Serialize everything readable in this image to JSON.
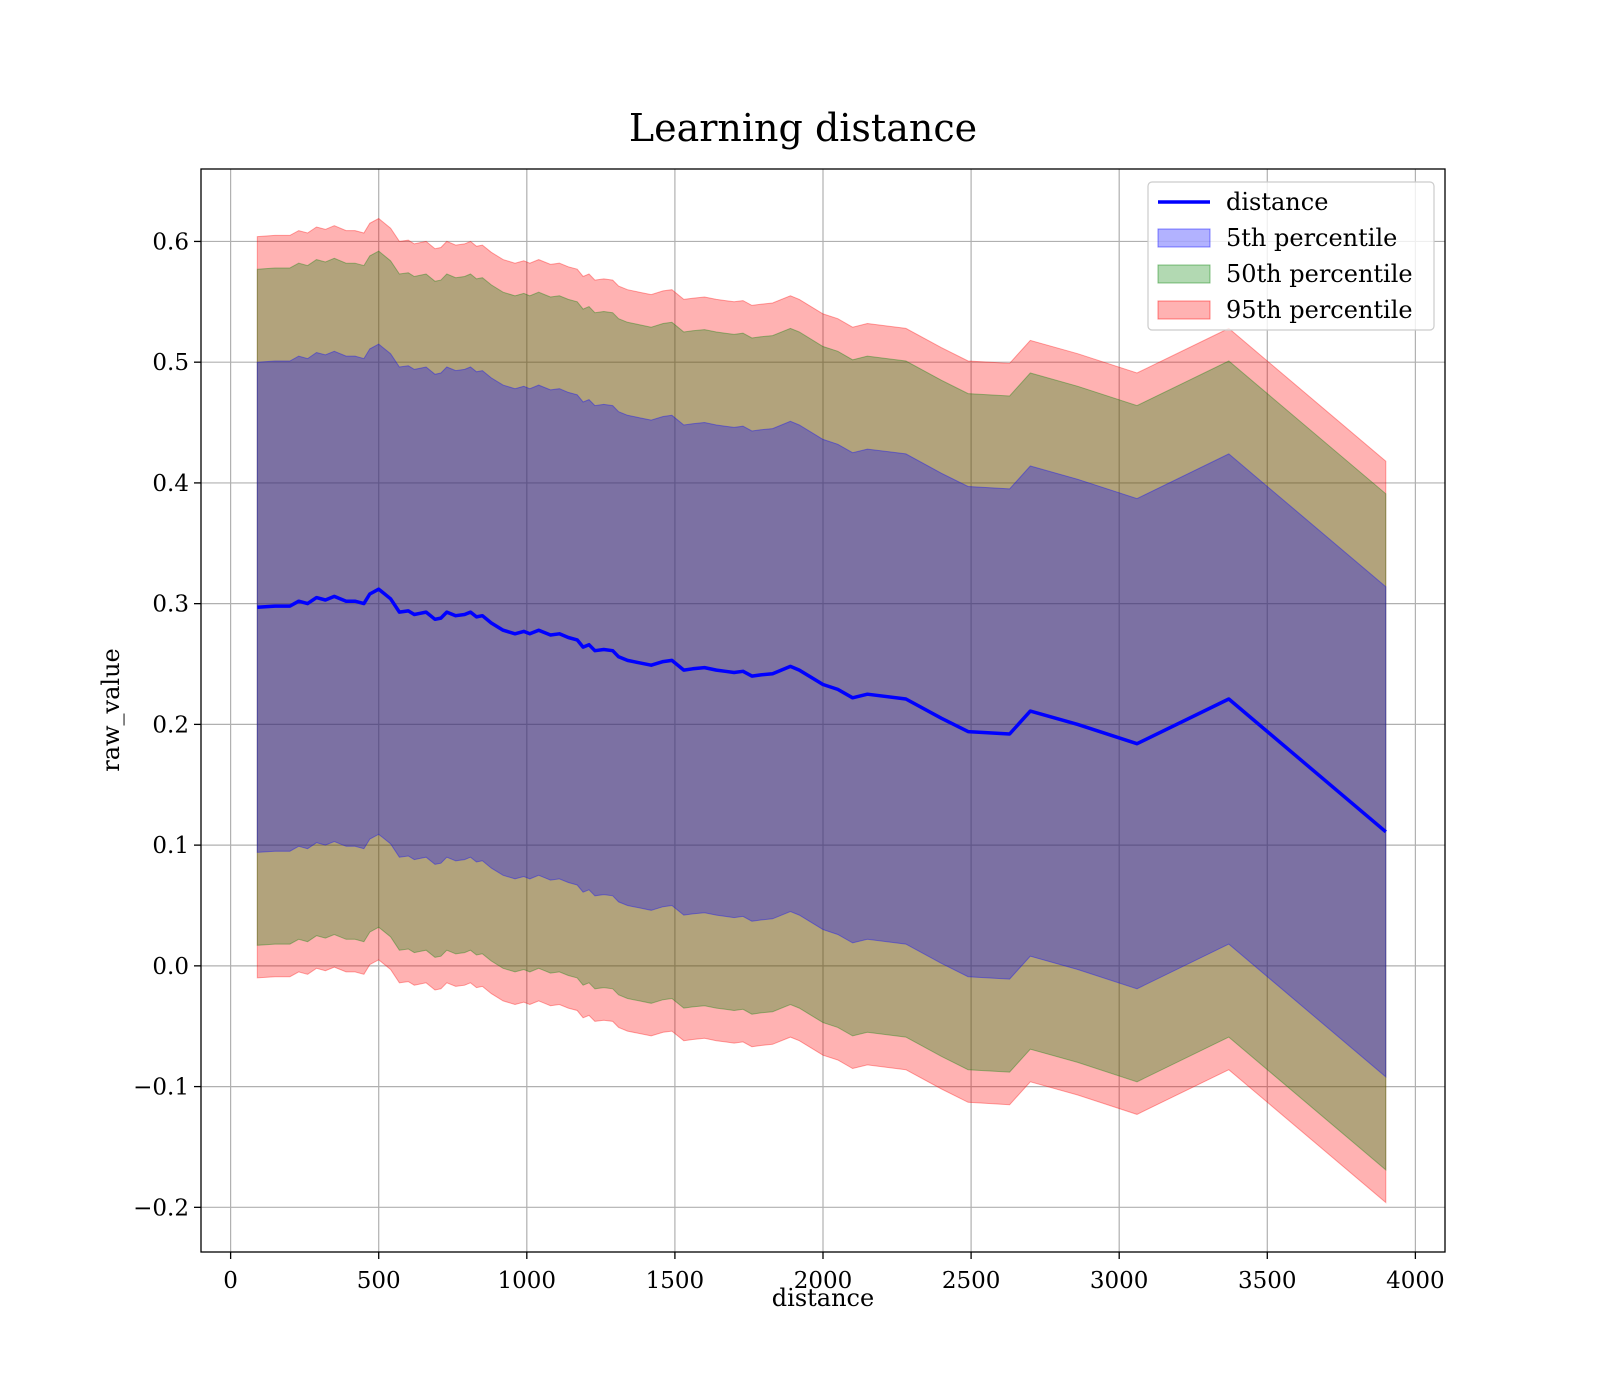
{
  "chart_data": {
    "type": "area",
    "title": "Learning distance",
    "xlabel": "distance",
    "ylabel": "raw_value",
    "xlim": [
      -100,
      4100
    ],
    "ylim": [
      -0.237,
      0.66
    ],
    "x_ticks": [
      0,
      500,
      1000,
      1500,
      2000,
      2500,
      3000,
      3500,
      4000
    ],
    "x_tick_labels": [
      "0",
      "500",
      "1000",
      "1500",
      "2000",
      "2500",
      "3000",
      "3500",
      "4000"
    ],
    "y_ticks": [
      -0.2,
      -0.1,
      0.0,
      0.1,
      0.2,
      0.3,
      0.4,
      0.5,
      0.6
    ],
    "y_tick_labels": [
      "−0.2",
      "−0.1",
      "0.0",
      "0.1",
      "0.2",
      "0.3",
      "0.4",
      "0.5",
      "0.6"
    ],
    "grid": true,
    "legend_position": "upper right",
    "legend": [
      {
        "label": "distance",
        "kind": "line",
        "color": "#0000ff"
      },
      {
        "label": "5th percentile",
        "kind": "patch",
        "color": "#0000ff",
        "alpha": 0.3
      },
      {
        "label": "50th percentile",
        "kind": "patch",
        "color": "#008000",
        "alpha": 0.3
      },
      {
        "label": "95th percentile",
        "kind": "patch",
        "color": "#ff0000",
        "alpha": 0.3
      }
    ],
    "x": [
      90,
      150,
      200,
      230,
      260,
      290,
      320,
      350,
      390,
      420,
      450,
      470,
      500,
      540,
      570,
      600,
      620,
      640,
      660,
      690,
      710,
      730,
      760,
      790,
      810,
      830,
      850,
      880,
      920,
      960,
      990,
      1010,
      1040,
      1060,
      1080,
      1110,
      1140,
      1170,
      1190,
      1210,
      1230,
      1260,
      1290,
      1310,
      1340,
      1380,
      1420,
      1460,
      1490,
      1530,
      1560,
      1600,
      1640,
      1670,
      1700,
      1730,
      1760,
      1790,
      1830,
      1890,
      1920,
      2000,
      2050,
      2100,
      2150,
      2280,
      2400,
      2490,
      2630,
      2700,
      2860,
      3060,
      3370,
      3900
    ],
    "series": [
      {
        "name": "distance",
        "type": "line",
        "color": "#0000ff",
        "values": [
          0.297,
          0.298,
          0.298,
          0.302,
          0.3,
          0.305,
          0.303,
          0.306,
          0.302,
          0.302,
          0.3,
          0.308,
          0.312,
          0.304,
          0.293,
          0.294,
          0.291,
          0.292,
          0.293,
          0.287,
          0.288,
          0.293,
          0.29,
          0.291,
          0.293,
          0.289,
          0.29,
          0.284,
          0.278,
          0.275,
          0.277,
          0.275,
          0.278,
          0.276,
          0.274,
          0.275,
          0.272,
          0.27,
          0.264,
          0.266,
          0.261,
          0.262,
          0.261,
          0.256,
          0.253,
          0.251,
          0.249,
          0.252,
          0.253,
          0.245,
          0.246,
          0.247,
          0.245,
          0.244,
          0.243,
          0.244,
          0.24,
          0.241,
          0.242,
          0.248,
          0.245,
          0.233,
          0.229,
          0.222,
          0.225,
          0.221,
          0.205,
          0.194,
          0.192,
          0.211,
          0.2,
          0.184,
          0.221,
          0.111
        ]
      },
      {
        "name": "5th percentile",
        "type": "band",
        "color": "#0000ff",
        "alpha": 0.3,
        "lower": [
          0.094,
          0.095,
          0.095,
          0.099,
          0.097,
          0.102,
          0.1,
          0.103,
          0.099,
          0.099,
          0.097,
          0.105,
          0.109,
          0.101,
          0.09,
          0.091,
          0.088,
          0.089,
          0.09,
          0.084,
          0.085,
          0.09,
          0.087,
          0.088,
          0.09,
          0.086,
          0.087,
          0.081,
          0.075,
          0.072,
          0.074,
          0.072,
          0.075,
          0.073,
          0.071,
          0.072,
          0.069,
          0.067,
          0.061,
          0.063,
          0.058,
          0.059,
          0.058,
          0.053,
          0.05,
          0.048,
          0.046,
          0.049,
          0.05,
          0.042,
          0.043,
          0.044,
          0.042,
          0.041,
          0.04,
          0.041,
          0.037,
          0.038,
          0.039,
          0.045,
          0.042,
          0.03,
          0.026,
          0.019,
          0.022,
          0.018,
          0.002,
          -0.009,
          -0.011,
          0.008,
          -0.003,
          -0.019,
          0.018,
          -0.092
        ],
        "upper": [
          0.5,
          0.501,
          0.501,
          0.505,
          0.503,
          0.508,
          0.506,
          0.509,
          0.505,
          0.505,
          0.503,
          0.511,
          0.515,
          0.507,
          0.496,
          0.497,
          0.494,
          0.495,
          0.496,
          0.49,
          0.491,
          0.496,
          0.493,
          0.494,
          0.496,
          0.492,
          0.493,
          0.487,
          0.481,
          0.478,
          0.48,
          0.478,
          0.481,
          0.479,
          0.477,
          0.478,
          0.475,
          0.473,
          0.467,
          0.469,
          0.464,
          0.465,
          0.464,
          0.459,
          0.456,
          0.454,
          0.452,
          0.455,
          0.456,
          0.448,
          0.449,
          0.45,
          0.448,
          0.447,
          0.446,
          0.447,
          0.443,
          0.444,
          0.445,
          0.451,
          0.448,
          0.436,
          0.432,
          0.425,
          0.428,
          0.424,
          0.408,
          0.397,
          0.395,
          0.414,
          0.403,
          0.387,
          0.424,
          0.314
        ]
      },
      {
        "name": "50th percentile",
        "type": "band",
        "color": "#008000",
        "alpha": 0.3,
        "lower": [
          0.017,
          0.018,
          0.018,
          0.022,
          0.02,
          0.025,
          0.023,
          0.026,
          0.022,
          0.022,
          0.02,
          0.028,
          0.032,
          0.024,
          0.013,
          0.014,
          0.011,
          0.012,
          0.013,
          0.007,
          0.008,
          0.013,
          0.01,
          0.011,
          0.013,
          0.009,
          0.01,
          0.004,
          -0.002,
          -0.005,
          -0.003,
          -0.005,
          -0.002,
          -0.004,
          -0.006,
          -0.005,
          -0.008,
          -0.01,
          -0.016,
          -0.014,
          -0.019,
          -0.018,
          -0.019,
          -0.024,
          -0.027,
          -0.029,
          -0.031,
          -0.028,
          -0.027,
          -0.035,
          -0.034,
          -0.033,
          -0.035,
          -0.036,
          -0.037,
          -0.036,
          -0.04,
          -0.039,
          -0.038,
          -0.032,
          -0.035,
          -0.047,
          -0.051,
          -0.058,
          -0.055,
          -0.059,
          -0.075,
          -0.086,
          -0.088,
          -0.069,
          -0.08,
          -0.096,
          -0.059,
          -0.169
        ],
        "upper": [
          0.577,
          0.578,
          0.578,
          0.582,
          0.58,
          0.585,
          0.583,
          0.586,
          0.582,
          0.582,
          0.58,
          0.588,
          0.592,
          0.584,
          0.573,
          0.574,
          0.571,
          0.572,
          0.573,
          0.567,
          0.568,
          0.573,
          0.57,
          0.571,
          0.573,
          0.569,
          0.57,
          0.564,
          0.558,
          0.555,
          0.557,
          0.555,
          0.558,
          0.556,
          0.554,
          0.555,
          0.552,
          0.55,
          0.544,
          0.546,
          0.541,
          0.542,
          0.541,
          0.536,
          0.533,
          0.531,
          0.529,
          0.532,
          0.533,
          0.525,
          0.526,
          0.527,
          0.525,
          0.524,
          0.523,
          0.524,
          0.52,
          0.521,
          0.522,
          0.528,
          0.525,
          0.513,
          0.509,
          0.502,
          0.505,
          0.501,
          0.485,
          0.474,
          0.472,
          0.491,
          0.48,
          0.464,
          0.501,
          0.391
        ]
      },
      {
        "name": "95th percentile",
        "type": "band",
        "color": "#ff0000",
        "alpha": 0.3,
        "lower": [
          -0.01,
          -0.009,
          -0.009,
          -0.005,
          -0.007,
          -0.002,
          -0.004,
          -0.001,
          -0.005,
          -0.005,
          -0.007,
          0.001,
          0.005,
          -0.003,
          -0.014,
          -0.013,
          -0.016,
          -0.015,
          -0.014,
          -0.02,
          -0.019,
          -0.014,
          -0.017,
          -0.016,
          -0.014,
          -0.018,
          -0.017,
          -0.023,
          -0.029,
          -0.032,
          -0.03,
          -0.032,
          -0.029,
          -0.031,
          -0.033,
          -0.032,
          -0.035,
          -0.037,
          -0.043,
          -0.041,
          -0.046,
          -0.045,
          -0.046,
          -0.051,
          -0.054,
          -0.056,
          -0.058,
          -0.055,
          -0.054,
          -0.062,
          -0.061,
          -0.06,
          -0.062,
          -0.063,
          -0.064,
          -0.063,
          -0.067,
          -0.066,
          -0.065,
          -0.059,
          -0.062,
          -0.074,
          -0.078,
          -0.085,
          -0.082,
          -0.086,
          -0.102,
          -0.113,
          -0.115,
          -0.096,
          -0.107,
          -0.123,
          -0.086,
          -0.196
        ],
        "upper": [
          0.604,
          0.605,
          0.605,
          0.609,
          0.607,
          0.612,
          0.61,
          0.613,
          0.609,
          0.609,
          0.607,
          0.615,
          0.619,
          0.611,
          0.6,
          0.601,
          0.598,
          0.599,
          0.6,
          0.594,
          0.595,
          0.6,
          0.597,
          0.598,
          0.6,
          0.596,
          0.597,
          0.591,
          0.585,
          0.582,
          0.584,
          0.582,
          0.585,
          0.583,
          0.581,
          0.582,
          0.579,
          0.577,
          0.571,
          0.573,
          0.568,
          0.569,
          0.568,
          0.563,
          0.56,
          0.558,
          0.556,
          0.559,
          0.56,
          0.552,
          0.553,
          0.554,
          0.552,
          0.551,
          0.55,
          0.551,
          0.547,
          0.548,
          0.549,
          0.555,
          0.552,
          0.54,
          0.536,
          0.529,
          0.532,
          0.528,
          0.512,
          0.501,
          0.499,
          0.518,
          0.507,
          0.491,
          0.528,
          0.418
        ]
      }
    ]
  }
}
